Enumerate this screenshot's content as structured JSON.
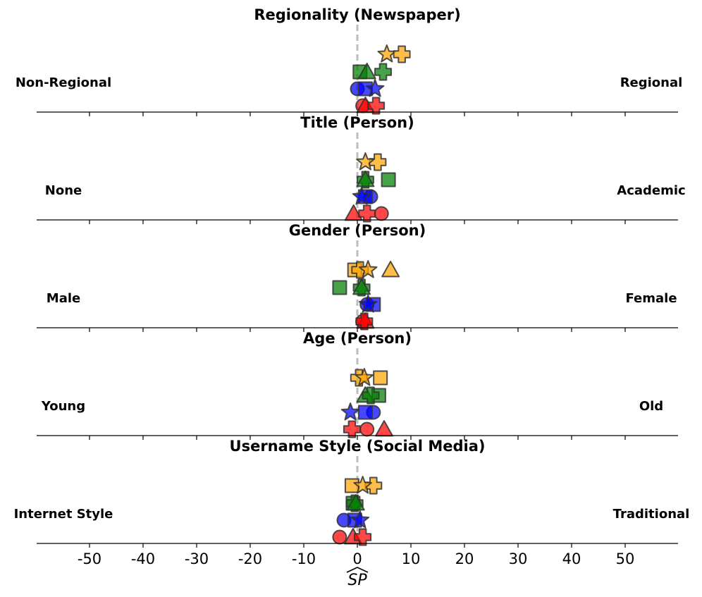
{
  "chart_data": {
    "type": "scatter",
    "xlabel": "SP",
    "xlim": [
      -60,
      60
    ],
    "xticks": [
      "-50",
      "-40",
      "-30",
      "-20",
      "-10",
      "0",
      "10",
      "20",
      "30",
      "40",
      "50"
    ],
    "xtick_values": [
      -50,
      -40,
      -30,
      -20,
      -10,
      0,
      10,
      20,
      30,
      40,
      50
    ],
    "reference_line": 0,
    "colors": {
      "orange": "#FFA500",
      "green": "#008000",
      "blue": "#0000FF",
      "red": "#FF0000"
    },
    "row_order": [
      "orange",
      "green",
      "blue",
      "red"
    ],
    "panels": [
      {
        "title": "Regionality (Newspaper)",
        "left_label": "Non-Regional",
        "right_label": "Regional",
        "points": [
          {
            "color": "orange",
            "marker": "star",
            "x": 5.5
          },
          {
            "color": "orange",
            "marker": "plus",
            "x": 8.3
          },
          {
            "color": "green",
            "marker": "square",
            "x": 0.5
          },
          {
            "color": "green",
            "marker": "triangle",
            "x": 1.8
          },
          {
            "color": "green",
            "marker": "plus",
            "x": 4.8
          },
          {
            "color": "blue",
            "marker": "circle",
            "x": 0.0
          },
          {
            "color": "blue",
            "marker": "square",
            "x": 1.5
          },
          {
            "color": "blue",
            "marker": "star",
            "x": 3.3
          },
          {
            "color": "red",
            "marker": "circle",
            "x": 1.0
          },
          {
            "color": "red",
            "marker": "triangle",
            "x": 1.5
          },
          {
            "color": "red",
            "marker": "plus",
            "x": 3.5
          }
        ]
      },
      {
        "title": "Title (Person)",
        "left_label": "None",
        "right_label": "Academic",
        "points": [
          {
            "color": "orange",
            "marker": "plus",
            "x": 3.8
          },
          {
            "color": "orange",
            "marker": "star",
            "x": 1.5
          },
          {
            "color": "green",
            "marker": "square",
            "x": 5.8
          },
          {
            "color": "green",
            "marker": "plus",
            "x": 1.5
          },
          {
            "color": "green",
            "marker": "triangle",
            "x": 1.5
          },
          {
            "color": "blue",
            "marker": "circle",
            "x": 2.5
          },
          {
            "color": "blue",
            "marker": "square",
            "x": 1.5
          },
          {
            "color": "blue",
            "marker": "star",
            "x": 0.8
          },
          {
            "color": "red",
            "marker": "triangle",
            "x": -0.7
          },
          {
            "color": "red",
            "marker": "circle",
            "x": 4.5
          },
          {
            "color": "red",
            "marker": "plus",
            "x": 1.8
          }
        ]
      },
      {
        "title": "Gender (Person)",
        "left_label": "Male",
        "right_label": "Female",
        "points": [
          {
            "color": "orange",
            "marker": "square",
            "x": -0.5
          },
          {
            "color": "orange",
            "marker": "plus",
            "x": 0.5
          },
          {
            "color": "orange",
            "marker": "star",
            "x": 2.0
          },
          {
            "color": "orange",
            "marker": "triangle",
            "x": 6.2
          },
          {
            "color": "green",
            "marker": "square",
            "x": -3.3
          },
          {
            "color": "green",
            "marker": "plus",
            "x": 0.8
          },
          {
            "color": "green",
            "marker": "triangle",
            "x": 0.8
          },
          {
            "color": "blue",
            "marker": "circle",
            "x": 1.8
          },
          {
            "color": "blue",
            "marker": "square",
            "x": 3.0
          },
          {
            "color": "blue",
            "marker": "star",
            "x": 2.0
          },
          {
            "color": "red",
            "marker": "circle",
            "x": 1.0
          },
          {
            "color": "red",
            "marker": "triangle",
            "x": 1.5
          },
          {
            "color": "red",
            "marker": "plus",
            "x": 1.3
          }
        ]
      },
      {
        "title": "Age (Person)",
        "left_label": "Young",
        "right_label": "Old",
        "points": [
          {
            "color": "orange",
            "marker": "plus",
            "x": 0.3
          },
          {
            "color": "orange",
            "marker": "square",
            "x": 4.3
          },
          {
            "color": "orange",
            "marker": "star",
            "x": 1.3
          },
          {
            "color": "green",
            "marker": "square",
            "x": 4.0
          },
          {
            "color": "green",
            "marker": "triangle",
            "x": 1.5
          },
          {
            "color": "green",
            "marker": "plus",
            "x": 2.5
          },
          {
            "color": "blue",
            "marker": "circle",
            "x": 3.0
          },
          {
            "color": "blue",
            "marker": "square",
            "x": 1.5
          },
          {
            "color": "blue",
            "marker": "star",
            "x": -1.3
          },
          {
            "color": "red",
            "marker": "plus",
            "x": -1.0
          },
          {
            "color": "red",
            "marker": "circle",
            "x": 1.8
          },
          {
            "color": "red",
            "marker": "triangle",
            "x": 5.0
          }
        ]
      },
      {
        "title": "Username Style (Social Media)",
        "left_label": "Internet Style",
        "right_label": "Traditional",
        "points": [
          {
            "color": "orange",
            "marker": "square",
            "x": -1.0
          },
          {
            "color": "orange",
            "marker": "plus",
            "x": 3.0
          },
          {
            "color": "orange",
            "marker": "star",
            "x": 1.0
          },
          {
            "color": "green",
            "marker": "square",
            "x": -0.8
          },
          {
            "color": "green",
            "marker": "plus",
            "x": -0.5
          },
          {
            "color": "green",
            "marker": "triangle",
            "x": -0.3
          },
          {
            "color": "blue",
            "marker": "circle",
            "x": -2.5
          },
          {
            "color": "blue",
            "marker": "square",
            "x": -0.5
          },
          {
            "color": "blue",
            "marker": "star",
            "x": 0.5
          },
          {
            "color": "red",
            "marker": "circle",
            "x": -3.3
          },
          {
            "color": "red",
            "marker": "triangle",
            "x": -0.8
          },
          {
            "color": "red",
            "marker": "plus",
            "x": 1.0
          }
        ]
      }
    ]
  }
}
